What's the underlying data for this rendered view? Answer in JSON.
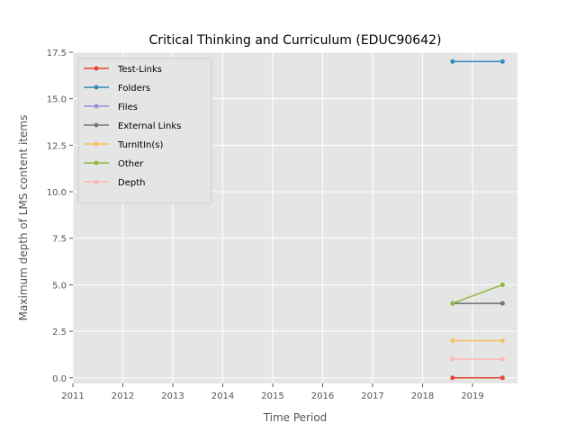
{
  "chart_data": {
    "type": "line",
    "title": "Critical Thinking and Curriculum (EDUC90642)",
    "xlabel": "Time Period",
    "ylabel": "Maximum depth of LMS content items",
    "xlim": [
      2011,
      2019.9
    ],
    "ylim": [
      -0.3,
      17.5
    ],
    "xticks": [
      2011,
      2012,
      2013,
      2014,
      2015,
      2016,
      2017,
      2018,
      2019
    ],
    "xtick_labels": [
      "2011",
      "2012",
      "2013",
      "2014",
      "2015",
      "2016",
      "2017",
      "2018",
      "2019"
    ],
    "yticks": [
      0,
      2.5,
      5,
      7.5,
      10,
      12.5,
      15,
      17.5
    ],
    "ytick_labels": [
      "0.0",
      "2.5",
      "5.0",
      "7.5",
      "10.0",
      "12.5",
      "15.0",
      "17.5"
    ],
    "grid": true,
    "legend_position": "upper-left",
    "series": [
      {
        "name": "Test-Links",
        "color": "#E24A33",
        "x": [
          2018.6,
          2019.6
        ],
        "y": [
          0,
          0
        ]
      },
      {
        "name": "Folders",
        "color": "#348ABD",
        "x": [
          2018.6,
          2019.6
        ],
        "y": [
          17,
          17
        ]
      },
      {
        "name": "Files",
        "color": "#988ED5",
        "x": [
          2018.6,
          2019.6
        ],
        "y": [
          4,
          4
        ]
      },
      {
        "name": "External Links",
        "color": "#777777",
        "x": [
          2018.6,
          2019.6
        ],
        "y": [
          4,
          4
        ]
      },
      {
        "name": "TurnItIn(s)",
        "color": "#FBC15E",
        "x": [
          2018.6,
          2019.6
        ],
        "y": [
          2,
          2
        ]
      },
      {
        "name": "Other",
        "color": "#8EBA42",
        "x": [
          2018.6,
          2019.6
        ],
        "y": [
          4,
          5
        ]
      },
      {
        "name": "Depth",
        "color": "#FFB5B8",
        "x": [
          2018.6,
          2019.6
        ],
        "y": [
          1,
          1
        ]
      }
    ]
  }
}
